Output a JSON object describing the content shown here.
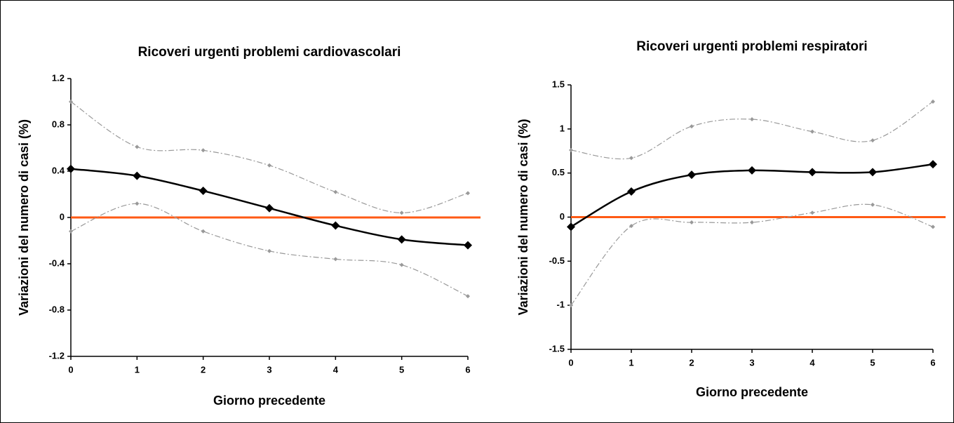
{
  "chart_data": [
    {
      "type": "line",
      "title": "Ricoveri urgenti problemi cardiovascolari",
      "xlabel": "Giorno precedente",
      "ylabel": "Variazioni del numero di casi (%)",
      "x": [
        0,
        1,
        2,
        3,
        4,
        5,
        6
      ],
      "xlim": [
        0,
        6
      ],
      "xticks": [
        0,
        1,
        2,
        3,
        4,
        5,
        6
      ],
      "ylim": [
        -1.2,
        1.2
      ],
      "yticks": [
        1.2,
        0.8,
        0.4,
        0,
        -0.4,
        -0.8,
        -1.2
      ],
      "hline": 0,
      "hline_color": "#ff5a14",
      "series": [
        {
          "color": "#000000",
          "style": "solid",
          "values": [
            0.42,
            0.36,
            0.23,
            0.08,
            -0.07,
            -0.19,
            -0.24
          ]
        },
        {
          "color": "#999999",
          "style": "dashdot",
          "values": [
            1.0,
            0.61,
            0.58,
            0.45,
            0.22,
            0.04,
            0.21
          ]
        },
        {
          "color": "#999999",
          "style": "dashdot",
          "values": [
            -0.12,
            0.12,
            -0.12,
            -0.29,
            -0.36,
            -0.41,
            -0.68
          ]
        }
      ]
    },
    {
      "type": "line",
      "title": "Ricoveri urgenti problemi respiratori",
      "xlabel": "Giorno precedente",
      "ylabel": "Variazioni del numero di casi (%)",
      "x": [
        0,
        1,
        2,
        3,
        4,
        5,
        6
      ],
      "xlim": [
        0,
        6
      ],
      "xticks": [
        0,
        1,
        2,
        3,
        4,
        5,
        6
      ],
      "ylim": [
        -1.5,
        1.5
      ],
      "yticks": [
        1.5,
        1,
        0.5,
        0,
        -0.5,
        -1,
        -1.5
      ],
      "hline": 0,
      "hline_color": "#ff5a14",
      "series": [
        {
          "color": "#000000",
          "style": "solid",
          "values": [
            -0.11,
            0.29,
            0.48,
            0.53,
            0.51,
            0.51,
            0.6
          ]
        },
        {
          "color": "#999999",
          "style": "dashdot",
          "values": [
            0.76,
            0.67,
            1.03,
            1.11,
            0.97,
            0.87,
            1.31
          ]
        },
        {
          "color": "#999999",
          "style": "dashdot",
          "values": [
            -1.0,
            -0.1,
            -0.06,
            -0.06,
            0.05,
            0.14,
            -0.11
          ]
        }
      ]
    }
  ]
}
